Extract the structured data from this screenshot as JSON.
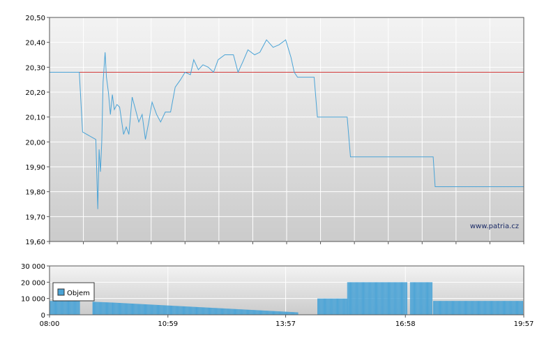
{
  "watermark": "www.patria.cz",
  "colors": {
    "price_line": "#4aa3d6",
    "reference_line": "#d43a3a",
    "volume_bar": "#4aa3d6",
    "plot_bg_top": "#f3f3f3",
    "plot_bg_bottom": "#cbcbcb",
    "grid": "#ffffff"
  },
  "chart_data": [
    {
      "type": "line",
      "title": "",
      "ylabel": "",
      "xlabel": "",
      "ylim": [
        19.6,
        20.5
      ],
      "xlim": [
        "08:00",
        "19:57"
      ],
      "y_tick_labels": [
        "19,60",
        "19,70",
        "19,80",
        "19,90",
        "20,00",
        "20,10",
        "20,20",
        "20,30",
        "20,40",
        "20,50"
      ],
      "reference_value": 20.28,
      "grid": true,
      "series": [
        {
          "points": [
            [
              "08:00",
              20.28
            ],
            [
              "08:45",
              20.28
            ],
            [
              "08:50",
              20.04
            ],
            [
              "09:10",
              20.01
            ],
            [
              "09:13",
              19.73
            ],
            [
              "09:15",
              19.97
            ],
            [
              "09:17",
              19.88
            ],
            [
              "09:19",
              20.0
            ],
            [
              "09:21",
              20.24
            ],
            [
              "09:24",
              20.36
            ],
            [
              "09:26",
              20.26
            ],
            [
              "09:29",
              20.2
            ],
            [
              "09:32",
              20.11
            ],
            [
              "09:35",
              20.19
            ],
            [
              "09:38",
              20.13
            ],
            [
              "09:42",
              20.15
            ],
            [
              "09:46",
              20.14
            ],
            [
              "09:52",
              20.03
            ],
            [
              "09:56",
              20.06
            ],
            [
              "10:00",
              20.03
            ],
            [
              "10:05",
              20.18
            ],
            [
              "10:10",
              20.13
            ],
            [
              "10:15",
              20.08
            ],
            [
              "10:20",
              20.11
            ],
            [
              "10:25",
              20.01
            ],
            [
              "10:30",
              20.08
            ],
            [
              "10:35",
              20.16
            ],
            [
              "10:42",
              20.11
            ],
            [
              "10:48",
              20.08
            ],
            [
              "10:55",
              20.12
            ],
            [
              "11:03",
              20.12
            ],
            [
              "11:10",
              20.22
            ],
            [
              "11:18",
              20.25
            ],
            [
              "11:25",
              20.28
            ],
            [
              "11:33",
              20.27
            ],
            [
              "11:38",
              20.33
            ],
            [
              "11:45",
              20.29
            ],
            [
              "11:52",
              20.31
            ],
            [
              "12:00",
              20.3
            ],
            [
              "12:08",
              20.28
            ],
            [
              "12:15",
              20.33
            ],
            [
              "12:25",
              20.35
            ],
            [
              "12:38",
              20.35
            ],
            [
              "12:45",
              20.28
            ],
            [
              "12:52",
              20.32
            ],
            [
              "13:00",
              20.37
            ],
            [
              "13:10",
              20.35
            ],
            [
              "13:18",
              20.36
            ],
            [
              "13:28",
              20.41
            ],
            [
              "13:38",
              20.38
            ],
            [
              "13:47",
              20.39
            ],
            [
              "13:57",
              20.41
            ],
            [
              "14:05",
              20.34
            ],
            [
              "14:10",
              20.28
            ],
            [
              "14:15",
              20.26
            ],
            [
              "14:40",
              20.26
            ],
            [
              "14:45",
              20.1
            ],
            [
              "15:30",
              20.1
            ],
            [
              "15:35",
              19.94
            ],
            [
              "17:40",
              19.94
            ],
            [
              "17:43",
              19.82
            ],
            [
              "19:57",
              19.82
            ]
          ]
        }
      ]
    },
    {
      "type": "bar",
      "title": "",
      "ylabel": "",
      "xlabel": "",
      "ylim": [
        0,
        30000
      ],
      "y_tick_labels": [
        "0",
        "10 000",
        "20 000",
        "30 000"
      ],
      "x_tick_labels": [
        "08:00",
        "10:59",
        "13:57",
        "16:58",
        "19:57"
      ],
      "legend": "top-left",
      "grid": true,
      "series": [
        {
          "name": "Objem",
          "segments": [
            {
              "from": "08:00",
              "to": "08:45",
              "start": 8500,
              "end": 8500
            },
            {
              "from": "09:05",
              "to": "09:35",
              "start": 8000,
              "end": 7500
            },
            {
              "from": "09:35",
              "to": "14:15",
              "start": 7500,
              "end": 1500
            },
            {
              "from": "14:45",
              "to": "15:30",
              "start": 10000,
              "end": 10000
            },
            {
              "from": "15:30",
              "to": "17:00",
              "start": 20000,
              "end": 20000
            },
            {
              "from": "17:05",
              "to": "17:38",
              "start": 20000,
              "end": 20000
            },
            {
              "from": "17:40",
              "to": "19:55",
              "start": 8500,
              "end": 8500
            }
          ]
        }
      ]
    }
  ]
}
